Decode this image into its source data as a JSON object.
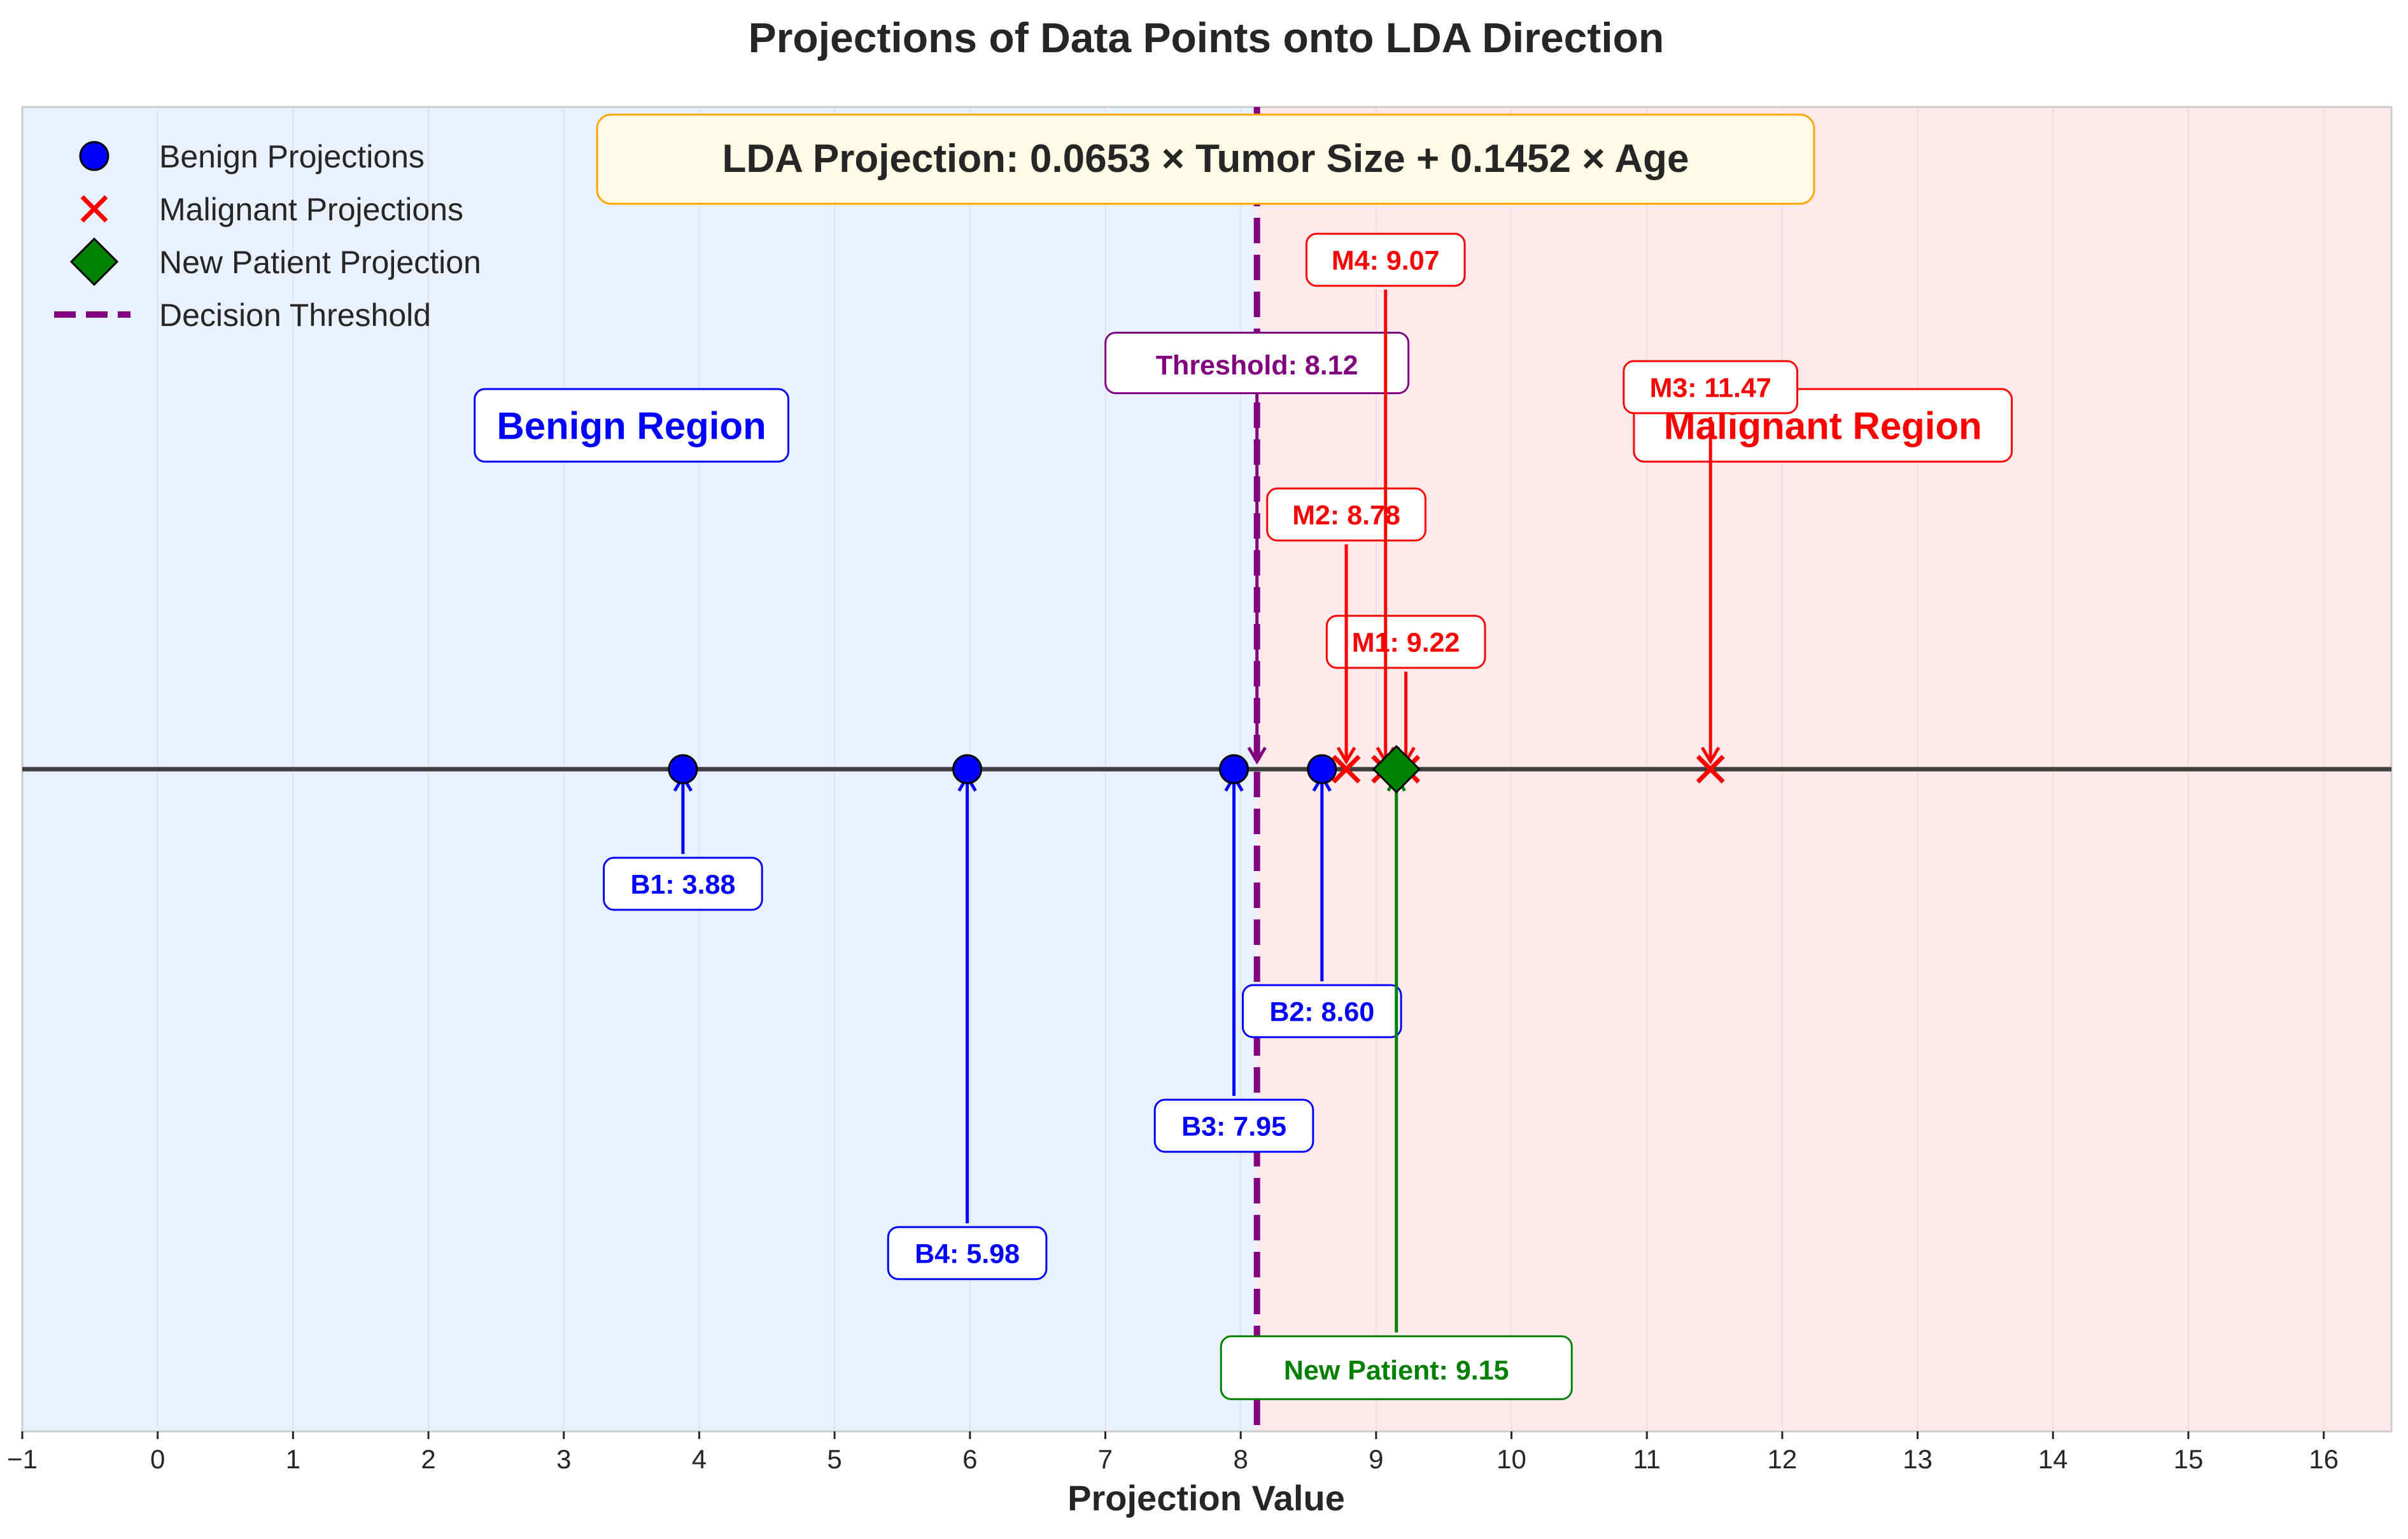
{
  "chart_data": {
    "type": "scatter",
    "title": "Projections of Data Points onto LDA Direction",
    "xlabel": "Projection Value",
    "ylabel": "",
    "xlim": [
      -1,
      16.5
    ],
    "xticks": [
      -1,
      0,
      1,
      2,
      3,
      4,
      5,
      6,
      7,
      8,
      9,
      10,
      11,
      12,
      13,
      14,
      15,
      16
    ],
    "xtick_labels": [
      "−1",
      "0",
      "1",
      "2",
      "3",
      "4",
      "5",
      "6",
      "7",
      "8",
      "9",
      "10",
      "11",
      "12",
      "13",
      "14",
      "15",
      "16"
    ],
    "grid": true,
    "legend_position": "top-left",
    "legend": [
      {
        "label": "Benign Projections",
        "marker": "circle",
        "color": "#0000ff"
      },
      {
        "label": "Malignant Projections",
        "marker": "x",
        "color": "#ff0000"
      },
      {
        "label": "New Patient Projection",
        "marker": "diamond",
        "color": "#008000"
      },
      {
        "label": "Decision Threshold",
        "marker": "dashed-line",
        "color": "#800080"
      }
    ],
    "series": [
      {
        "name": "Benign Projections",
        "color": "#0000ff",
        "marker": "circle",
        "points": [
          {
            "id": "B1",
            "x": 3.88,
            "label": "B1: 3.88",
            "label_offset": -0.18
          },
          {
            "id": "B2",
            "x": 8.6,
            "label": "B2: 8.60",
            "label_offset": -0.38
          },
          {
            "id": "B3",
            "x": 7.95,
            "label": "B3: 7.95",
            "label_offset": -0.56
          },
          {
            "id": "B4",
            "x": 5.98,
            "label": "B4: 5.98",
            "label_offset": -0.76
          }
        ]
      },
      {
        "name": "Malignant Projections",
        "color": "#ff0000",
        "marker": "x",
        "points": [
          {
            "id": "M1",
            "x": 9.22,
            "label": "M1: 9.22",
            "label_offset": 0.2
          },
          {
            "id": "M2",
            "x": 8.78,
            "label": "M2: 8.78",
            "label_offset": 0.4
          },
          {
            "id": "M3",
            "x": 11.47,
            "label": "M3: 11.47",
            "label_offset": 0.6
          },
          {
            "id": "M4",
            "x": 9.07,
            "label": "M4: 9.07",
            "label_offset": 0.8
          }
        ]
      },
      {
        "name": "New Patient Projection",
        "color": "#008000",
        "marker": "diamond",
        "points": [
          {
            "id": "New",
            "x": 9.15,
            "label": "New Patient: 9.15",
            "label_offset": -0.94
          }
        ]
      }
    ],
    "threshold": {
      "x": 8.12,
      "label": "Threshold: 8.12",
      "color": "#800080"
    },
    "regions": [
      {
        "label": "Benign Region",
        "from": -1,
        "to": 8.12,
        "color": "#eaf1fe",
        "text_color": "#0000ff",
        "label_x": 3.5
      },
      {
        "label": "Malignant Region",
        "from": 8.12,
        "to": 16.5,
        "color": "#feeaea",
        "text_color": "#ff0000",
        "label_x": 12.3
      }
    ],
    "formula": "LDA Projection: 0.0653 × Tumor Size + 0.1452 × Age"
  }
}
